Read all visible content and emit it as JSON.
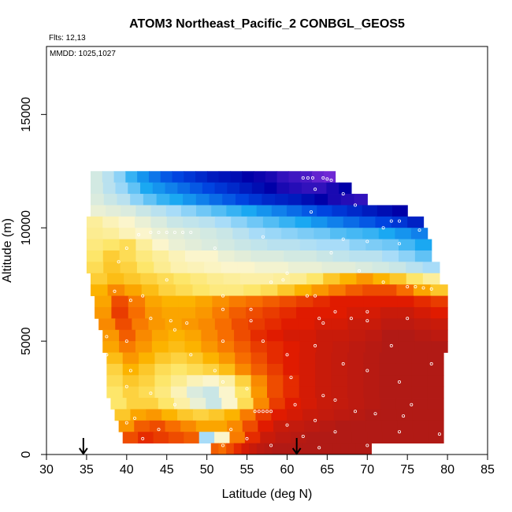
{
  "chart_data": {
    "type": "heatmap",
    "title": "ATOM3 Northeast_Pacific_2 CONBGL_GEOS5",
    "annotations": [
      "Flts: 12,13",
      "MMDD: 1025,1027"
    ],
    "xlabel": "Latitude (deg N)",
    "ylabel": "Altitude (m)",
    "xlim": [
      30,
      85
    ],
    "ylim": [
      0,
      18000
    ],
    "x_ticks": [
      30,
      35,
      40,
      45,
      50,
      55,
      60,
      65,
      70,
      75,
      80,
      85
    ],
    "y_ticks": [
      0,
      5000,
      10000,
      15000
    ],
    "x_tick_labels": [
      "30",
      "35",
      "40",
      "45",
      "50",
      "55",
      "60",
      "65",
      "70",
      "75",
      "80",
      "85"
    ],
    "y_tick_labels": [
      "0",
      "5000",
      "10000",
      "15000"
    ],
    "arrows_at_latitude": [
      34.6,
      61.2
    ],
    "color_scale": [
      "#7b2cd9",
      "#0000a8",
      "#0044e0",
      "#1aa8f2",
      "#a8dcf8",
      "#fbf5cc",
      "#fde66a",
      "#fcb300",
      "#f76d00",
      "#e01b00",
      "#a51a1a"
    ],
    "rows": [
      {
        "alt": [
          12000,
          12500
        ],
        "lat": [
          35.5,
          66
        ],
        "values": [
          0.45,
          0.42,
          0.38,
          0.32,
          0.28,
          0.25,
          0.22,
          0.2,
          0.18,
          0.16,
          0.14,
          0.13,
          0.12,
          0.1,
          0.09,
          0.08,
          0.06,
          0.05,
          0.04,
          0.02,
          0.01
        ]
      },
      {
        "alt": [
          11500,
          12000
        ],
        "lat": [
          35.5,
          68
        ],
        "values": [
          0.45,
          0.42,
          0.39,
          0.35,
          0.3,
          0.28,
          0.26,
          0.24,
          0.22,
          0.2,
          0.18,
          0.16,
          0.14,
          0.12,
          0.1,
          0.08,
          0.07,
          0.06,
          0.06,
          0.08,
          0.1
        ]
      },
      {
        "alt": [
          11000,
          11500
        ],
        "lat": [
          35.5,
          70
        ],
        "values": [
          0.46,
          0.44,
          0.42,
          0.38,
          0.35,
          0.32,
          0.3,
          0.28,
          0.26,
          0.24,
          0.22,
          0.2,
          0.18,
          0.16,
          0.15,
          0.14,
          0.12,
          0.1,
          0.08,
          0.07,
          0.06
        ]
      },
      {
        "alt": [
          10500,
          11000
        ],
        "lat": [
          35.5,
          75
        ],
        "values": [
          0.48,
          0.47,
          0.46,
          0.44,
          0.42,
          0.4,
          0.38,
          0.36,
          0.34,
          0.32,
          0.3,
          0.28,
          0.26,
          0.24,
          0.22,
          0.2,
          0.18,
          0.16,
          0.14,
          0.12,
          0.1
        ]
      },
      {
        "alt": [
          10000,
          10500
        ],
        "lat": [
          35,
          77
        ],
        "values": [
          0.55,
          0.52,
          0.5,
          0.48,
          0.46,
          0.44,
          0.43,
          0.42,
          0.4,
          0.38,
          0.36,
          0.34,
          0.32,
          0.3,
          0.28,
          0.26,
          0.24,
          0.22,
          0.2,
          0.18,
          0.15
        ]
      },
      {
        "alt": [
          9500,
          10000
        ],
        "lat": [
          35,
          77.5
        ],
        "values": [
          0.56,
          0.55,
          0.52,
          0.5,
          0.48,
          0.47,
          0.46,
          0.45,
          0.44,
          0.42,
          0.4,
          0.39,
          0.38,
          0.37,
          0.36,
          0.34,
          0.33,
          0.32,
          0.3,
          0.28,
          0.26
        ]
      },
      {
        "alt": [
          9000,
          9500
        ],
        "lat": [
          35,
          78
        ],
        "values": [
          0.58,
          0.6,
          0.62,
          0.55,
          0.5,
          0.48,
          0.47,
          0.46,
          0.45,
          0.44,
          0.43,
          0.42,
          0.42,
          0.41,
          0.4,
          0.4,
          0.38,
          0.37,
          0.36,
          0.33,
          0.3
        ]
      },
      {
        "alt": [
          8500,
          9000
        ],
        "lat": [
          35,
          78
        ],
        "values": [
          0.6,
          0.65,
          0.62,
          0.58,
          0.55,
          0.52,
          0.5,
          0.5,
          0.48,
          0.47,
          0.46,
          0.46,
          0.45,
          0.45,
          0.44,
          0.43,
          0.42,
          0.42,
          0.4,
          0.38,
          0.35
        ]
      },
      {
        "alt": [
          8000,
          8500
        ],
        "lat": [
          35,
          79
        ],
        "values": [
          0.62,
          0.66,
          0.64,
          0.6,
          0.56,
          0.53,
          0.52,
          0.51,
          0.5,
          0.5,
          0.49,
          0.49,
          0.48,
          0.48,
          0.47,
          0.47,
          0.46,
          0.45,
          0.44,
          0.42,
          0.4
        ]
      },
      {
        "alt": [
          7500,
          8000
        ],
        "lat": [
          35.5,
          79
        ],
        "values": [
          0.65,
          0.68,
          0.66,
          0.64,
          0.62,
          0.6,
          0.58,
          0.56,
          0.55,
          0.54,
          0.54,
          0.55,
          0.56,
          0.6,
          0.66,
          0.7,
          0.74,
          0.7,
          0.66,
          0.6,
          0.55
        ]
      },
      {
        "alt": [
          7000,
          7500
        ],
        "lat": [
          35.5,
          80
        ],
        "values": [
          0.7,
          0.76,
          0.72,
          0.68,
          0.64,
          0.62,
          0.6,
          0.58,
          0.58,
          0.6,
          0.62,
          0.66,
          0.7,
          0.74,
          0.78,
          0.82,
          0.84,
          0.84,
          0.8,
          0.72,
          0.66
        ]
      },
      {
        "alt": [
          6500,
          7000
        ],
        "lat": [
          36,
          80
        ],
        "values": [
          0.72,
          0.84,
          0.78,
          0.72,
          0.7,
          0.7,
          0.72,
          0.75,
          0.78,
          0.8,
          0.82,
          0.84,
          0.86,
          0.88,
          0.9,
          0.9,
          0.9,
          0.9,
          0.9,
          0.88,
          0.86
        ]
      },
      {
        "alt": [
          6000,
          6500
        ],
        "lat": [
          36,
          80
        ],
        "values": [
          0.74,
          0.86,
          0.8,
          0.74,
          0.72,
          0.72,
          0.74,
          0.78,
          0.82,
          0.84,
          0.86,
          0.88,
          0.9,
          0.9,
          0.9,
          0.92,
          0.92,
          0.94,
          0.94,
          0.92,
          0.9
        ]
      },
      {
        "alt": [
          5500,
          6000
        ],
        "lat": [
          36.5,
          80
        ],
        "values": [
          0.76,
          0.84,
          0.78,
          0.74,
          0.72,
          0.74,
          0.76,
          0.8,
          0.84,
          0.86,
          0.88,
          0.9,
          0.9,
          0.92,
          0.92,
          0.94,
          0.94,
          0.96,
          0.96,
          0.95,
          0.94
        ]
      },
      {
        "alt": [
          5000,
          5500
        ],
        "lat": [
          37,
          80
        ],
        "values": [
          0.74,
          0.82,
          0.76,
          0.72,
          0.7,
          0.72,
          0.76,
          0.8,
          0.84,
          0.88,
          0.9,
          0.92,
          0.92,
          0.94,
          0.94,
          0.95,
          0.96,
          0.98,
          0.98,
          0.97,
          0.96
        ]
      },
      {
        "alt": [
          4500,
          5000
        ],
        "lat": [
          37,
          80
        ],
        "values": [
          0.72,
          0.78,
          0.74,
          0.7,
          0.68,
          0.7,
          0.74,
          0.78,
          0.82,
          0.86,
          0.88,
          0.9,
          0.92,
          0.94,
          0.95,
          0.96,
          0.97,
          0.98,
          0.98,
          0.98,
          0.98
        ]
      },
      {
        "alt": [
          4000,
          4500
        ],
        "lat": [
          37.5,
          79.5
        ],
        "values": [
          0.68,
          0.74,
          0.7,
          0.66,
          0.64,
          0.66,
          0.7,
          0.74,
          0.8,
          0.84,
          0.88,
          0.9,
          0.92,
          0.94,
          0.95,
          0.96,
          0.97,
          0.98,
          0.98,
          0.98,
          0.98
        ]
      },
      {
        "alt": [
          3500,
          4000
        ],
        "lat": [
          37.5,
          79.5
        ],
        "values": [
          0.64,
          0.7,
          0.66,
          0.62,
          0.6,
          0.62,
          0.64,
          0.68,
          0.76,
          0.82,
          0.86,
          0.9,
          0.92,
          0.94,
          0.95,
          0.96,
          0.97,
          0.98,
          0.98,
          0.98,
          0.98
        ]
      },
      {
        "alt": [
          3000,
          3500
        ],
        "lat": [
          37.5,
          79.5
        ],
        "values": [
          0.62,
          0.66,
          0.64,
          0.6,
          0.56,
          0.52,
          0.5,
          0.54,
          0.64,
          0.76,
          0.84,
          0.88,
          0.92,
          0.94,
          0.95,
          0.96,
          0.97,
          0.98,
          0.98,
          0.98,
          0.98
        ]
      },
      {
        "alt": [
          2500,
          3000
        ],
        "lat": [
          37.5,
          79.5
        ],
        "values": [
          0.6,
          0.64,
          0.62,
          0.58,
          0.52,
          0.46,
          0.44,
          0.5,
          0.6,
          0.74,
          0.84,
          0.88,
          0.92,
          0.94,
          0.95,
          0.96,
          0.97,
          0.98,
          0.98,
          0.98,
          0.98
        ]
      },
      {
        "alt": [
          2000,
          2500
        ],
        "lat": [
          38,
          79.5
        ],
        "values": [
          0.6,
          0.64,
          0.64,
          0.6,
          0.54,
          0.48,
          0.44,
          0.5,
          0.62,
          0.76,
          0.86,
          0.9,
          0.92,
          0.94,
          0.95,
          0.96,
          0.97,
          0.98,
          0.98,
          0.98,
          0.98
        ]
      },
      {
        "alt": [
          1500,
          2000
        ],
        "lat": [
          38.5,
          79.5
        ],
        "values": [
          0.66,
          0.72,
          0.74,
          0.7,
          0.66,
          0.64,
          0.66,
          0.7,
          0.78,
          0.86,
          0.9,
          0.92,
          0.94,
          0.95,
          0.96,
          0.97,
          0.98,
          0.98,
          0.98,
          0.98,
          0.98
        ]
      },
      {
        "alt": [
          1000,
          1500
        ],
        "lat": [
          39,
          79.5
        ],
        "values": [
          0.74,
          0.82,
          0.84,
          0.8,
          0.76,
          0.72,
          0.72,
          0.76,
          0.84,
          0.9,
          0.94,
          0.95,
          0.96,
          0.97,
          0.98,
          0.98,
          0.98,
          0.98,
          0.98,
          0.98,
          0.98
        ]
      },
      {
        "alt": [
          500,
          1000
        ],
        "lat": [
          39.5,
          79.5
        ],
        "values": [
          0.84,
          0.88,
          0.86,
          0.84,
          0.82,
          0.4,
          0.5,
          0.78,
          0.88,
          0.94,
          0.96,
          0.97,
          0.98,
          0.98,
          0.98,
          0.98,
          0.98,
          0.98,
          0.98,
          0.98,
          0.98
        ]
      },
      {
        "alt": [
          0,
          500
        ],
        "lat": [
          50.5,
          70.5
        ],
        "values": [
          0.82,
          0.8,
          0.84,
          0.88,
          0.92,
          0.94,
          0.96,
          0.97,
          0.98,
          0.98,
          0.98,
          0.98,
          0.98,
          0.98,
          0.98,
          0.98,
          0.98,
          0.98,
          0.98,
          0.98,
          0.98
        ]
      }
    ],
    "points": [
      {
        "lat": 63.2,
        "alt": 12200
      },
      {
        "lat": 62.6,
        "alt": 12200
      },
      {
        "lat": 62.0,
        "alt": 12200
      },
      {
        "lat": 64.5,
        "alt": 12200
      },
      {
        "lat": 65.0,
        "alt": 12150
      },
      {
        "lat": 65.5,
        "alt": 12100
      },
      {
        "lat": 63.5,
        "alt": 11700
      },
      {
        "lat": 67.0,
        "alt": 11500
      },
      {
        "lat": 68.5,
        "alt": 11000
      },
      {
        "lat": 63.0,
        "alt": 10700
      },
      {
        "lat": 73.0,
        "alt": 10300
      },
      {
        "lat": 74.0,
        "alt": 10300
      },
      {
        "lat": 72.0,
        "alt": 10000
      },
      {
        "lat": 76.5,
        "alt": 9900
      },
      {
        "lat": 43.0,
        "alt": 9800
      },
      {
        "lat": 44.0,
        "alt": 9800
      },
      {
        "lat": 45.0,
        "alt": 9800
      },
      {
        "lat": 46.0,
        "alt": 9800
      },
      {
        "lat": 47.0,
        "alt": 9800
      },
      {
        "lat": 48.0,
        "alt": 9800
      },
      {
        "lat": 41.5,
        "alt": 9700
      },
      {
        "lat": 57.0,
        "alt": 9600
      },
      {
        "lat": 67.0,
        "alt": 9500
      },
      {
        "lat": 70.0,
        "alt": 9400
      },
      {
        "lat": 74.0,
        "alt": 9300
      },
      {
        "lat": 40.0,
        "alt": 9100
      },
      {
        "lat": 51.0,
        "alt": 9100
      },
      {
        "lat": 65.5,
        "alt": 8900
      },
      {
        "lat": 39.0,
        "alt": 8500
      },
      {
        "lat": 60.0,
        "alt": 8000
      },
      {
        "lat": 69.0,
        "alt": 8100
      },
      {
        "lat": 45.0,
        "alt": 7700
      },
      {
        "lat": 59.5,
        "alt": 7700
      },
      {
        "lat": 58.0,
        "alt": 7600
      },
      {
        "lat": 72.0,
        "alt": 7600
      },
      {
        "lat": 75.0,
        "alt": 7400
      },
      {
        "lat": 76.0,
        "alt": 7400
      },
      {
        "lat": 77.0,
        "alt": 7350
      },
      {
        "lat": 78.0,
        "alt": 7300
      },
      {
        "lat": 38.5,
        "alt": 7200
      },
      {
        "lat": 42.0,
        "alt": 7000
      },
      {
        "lat": 52.0,
        "alt": 7000
      },
      {
        "lat": 62.5,
        "alt": 7000
      },
      {
        "lat": 63.5,
        "alt": 7000
      },
      {
        "lat": 40.5,
        "alt": 6800
      },
      {
        "lat": 52.0,
        "alt": 6400
      },
      {
        "lat": 55.5,
        "alt": 6400
      },
      {
        "lat": 66.0,
        "alt": 6300
      },
      {
        "lat": 70.0,
        "alt": 6300
      },
      {
        "lat": 75.0,
        "alt": 6000
      },
      {
        "lat": 43.0,
        "alt": 6000
      },
      {
        "lat": 64.0,
        "alt": 6000
      },
      {
        "lat": 68.0,
        "alt": 6000
      },
      {
        "lat": 45.5,
        "alt": 5900
      },
      {
        "lat": 55.5,
        "alt": 5900
      },
      {
        "lat": 47.5,
        "alt": 5800
      },
      {
        "lat": 64.5,
        "alt": 5800
      },
      {
        "lat": 70.0,
        "alt": 5900
      },
      {
        "lat": 46.0,
        "alt": 5500
      },
      {
        "lat": 37.5,
        "alt": 5200
      },
      {
        "lat": 40.0,
        "alt": 5000
      },
      {
        "lat": 52.0,
        "alt": 5000
      },
      {
        "lat": 57.0,
        "alt": 5000
      },
      {
        "lat": 63.5,
        "alt": 4800
      },
      {
        "lat": 73.0,
        "alt": 4800
      },
      {
        "lat": 37.5,
        "alt": 4400
      },
      {
        "lat": 48.0,
        "alt": 4400
      },
      {
        "lat": 60.0,
        "alt": 4400
      },
      {
        "lat": 67.0,
        "alt": 4000
      },
      {
        "lat": 78.0,
        "alt": 4000
      },
      {
        "lat": 51.0,
        "alt": 3700
      },
      {
        "lat": 40.5,
        "alt": 3700
      },
      {
        "lat": 70.0,
        "alt": 3700
      },
      {
        "lat": 60.5,
        "alt": 3400
      },
      {
        "lat": 52.0,
        "alt": 3200
      },
      {
        "lat": 74.0,
        "alt": 3200
      },
      {
        "lat": 40.0,
        "alt": 3000
      },
      {
        "lat": 55.0,
        "alt": 2900
      },
      {
        "lat": 43.0,
        "alt": 2700
      },
      {
        "lat": 64.5,
        "alt": 2600
      },
      {
        "lat": 46.0,
        "alt": 2200
      },
      {
        "lat": 61.0,
        "alt": 2200
      },
      {
        "lat": 66.0,
        "alt": 2400
      },
      {
        "lat": 75.5,
        "alt": 2200
      },
      {
        "lat": 56.0,
        "alt": 1900
      },
      {
        "lat": 56.5,
        "alt": 1900
      },
      {
        "lat": 57.0,
        "alt": 1900
      },
      {
        "lat": 57.5,
        "alt": 1900
      },
      {
        "lat": 58.0,
        "alt": 1900
      },
      {
        "lat": 68.5,
        "alt": 1900
      },
      {
        "lat": 71.0,
        "alt": 1800
      },
      {
        "lat": 74.5,
        "alt": 1700
      },
      {
        "lat": 41.0,
        "alt": 1600
      },
      {
        "lat": 63.5,
        "alt": 1500
      },
      {
        "lat": 40.0,
        "alt": 1400
      },
      {
        "lat": 60.0,
        "alt": 1300
      },
      {
        "lat": 44.0,
        "alt": 1100
      },
      {
        "lat": 53.0,
        "alt": 1100
      },
      {
        "lat": 66.0,
        "alt": 1000
      },
      {
        "lat": 74.0,
        "alt": 1000
      },
      {
        "lat": 79.0,
        "alt": 900
      },
      {
        "lat": 62.0,
        "alt": 800
      },
      {
        "lat": 55.0,
        "alt": 700
      },
      {
        "lat": 42.0,
        "alt": 700
      },
      {
        "lat": 58.0,
        "alt": 400
      },
      {
        "lat": 52.0,
        "alt": 400
      },
      {
        "lat": 70.0,
        "alt": 400
      },
      {
        "lat": 64.0,
        "alt": 300
      }
    ]
  }
}
